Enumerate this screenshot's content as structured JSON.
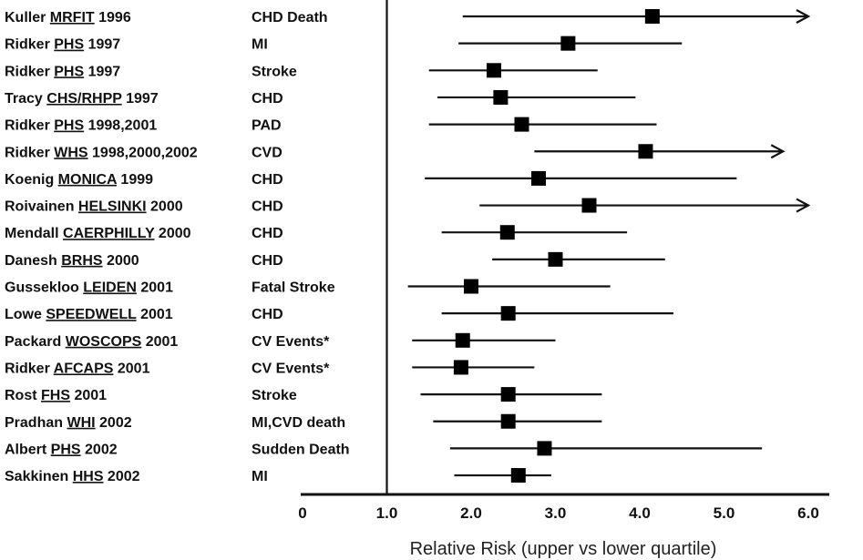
{
  "chart_data": {
    "type": "forest",
    "xlabel": "Relative Risk (upper vs lower quartile)",
    "xlim": [
      0,
      6.0
    ],
    "reference_line": 1.0,
    "ticks": [
      "0",
      "1.0",
      "2.0",
      "3.0",
      "4.0",
      "5.0",
      "6.0"
    ],
    "tick_values": [
      0,
      1,
      2,
      3,
      4,
      5,
      6
    ],
    "studies": [
      {
        "author": "Kuller",
        "study": "MRFIT",
        "year": "1996",
        "endpoint": "CHD Death",
        "rr": 4.15,
        "ci_low": 1.9,
        "ci_high": 6.0,
        "arrow": true
      },
      {
        "author": "Ridker",
        "study": "PHS",
        "year": "1997",
        "endpoint": "MI",
        "rr": 3.15,
        "ci_low": 1.85,
        "ci_high": 4.5,
        "arrow": false
      },
      {
        "author": "Ridker",
        "study": "PHS",
        "year": "1997",
        "endpoint": "Stroke",
        "rr": 2.27,
        "ci_low": 1.5,
        "ci_high": 3.5,
        "arrow": false
      },
      {
        "author": "Tracy",
        "study": "CHS/RHPP",
        "year": "1997",
        "endpoint": "CHD",
        "rr": 2.35,
        "ci_low": 1.6,
        "ci_high": 3.95,
        "arrow": false
      },
      {
        "author": "Ridker",
        "study": "PHS",
        "year": "1998,2001",
        "endpoint": "PAD",
        "rr": 2.6,
        "ci_low": 1.5,
        "ci_high": 4.2,
        "arrow": false
      },
      {
        "author": "Ridker",
        "study": "WHS",
        "year": "1998,2000,2002",
        "endpoint": "CVD",
        "rr": 4.07,
        "ci_low": 2.75,
        "ci_high": 5.7,
        "arrow": true
      },
      {
        "author": "Koenig",
        "study": "MONICA",
        "year": "1999",
        "endpoint": "CHD",
        "rr": 2.8,
        "ci_low": 1.45,
        "ci_high": 5.15,
        "arrow": false
      },
      {
        "author": "Roivainen",
        "study": "HELSINKI",
        "year": "2000",
        "endpoint": "CHD",
        "rr": 3.4,
        "ci_low": 2.1,
        "ci_high": 6.0,
        "arrow": true
      },
      {
        "author": "Mendall",
        "study": "CAERPHILLY",
        "year": "2000",
        "endpoint": "CHD",
        "rr": 2.43,
        "ci_low": 1.65,
        "ci_high": 3.85,
        "arrow": false
      },
      {
        "author": "Danesh",
        "study": "BRHS",
        "year": "2000",
        "endpoint": "CHD",
        "rr": 3.0,
        "ci_low": 2.25,
        "ci_high": 4.3,
        "arrow": false
      },
      {
        "author": "Gussekloo",
        "study": "LEIDEN",
        "year": "2001",
        "endpoint": "Fatal Stroke",
        "rr": 2.0,
        "ci_low": 1.25,
        "ci_high": 3.65,
        "arrow": false
      },
      {
        "author": "Lowe",
        "study": "SPEEDWELL",
        "year": "2001",
        "endpoint": "CHD",
        "rr": 2.44,
        "ci_low": 1.65,
        "ci_high": 4.4,
        "arrow": false
      },
      {
        "author": "Packard",
        "study": "WOSCOPS",
        "year": "2001",
        "endpoint": "CV Events*",
        "rr": 1.9,
        "ci_low": 1.3,
        "ci_high": 3.0,
        "arrow": false
      },
      {
        "author": "Ridker",
        "study": "AFCAPS",
        "year": "2001",
        "endpoint": "CV Events*",
        "rr": 1.88,
        "ci_low": 1.3,
        "ci_high": 2.75,
        "arrow": false
      },
      {
        "author": "Rost",
        "study": "FHS",
        "year": "2001",
        "endpoint": "Stroke",
        "rr": 2.44,
        "ci_low": 1.4,
        "ci_high": 3.55,
        "arrow": false
      },
      {
        "author": "Pradhan",
        "study": "WHI",
        "year": "2002",
        "endpoint": "MI,CVD death",
        "rr": 2.44,
        "ci_low": 1.55,
        "ci_high": 3.55,
        "arrow": false
      },
      {
        "author": "Albert",
        "study": "PHS",
        "year": "2002",
        "endpoint": "Sudden Death",
        "rr": 2.87,
        "ci_low": 1.75,
        "ci_high": 5.45,
        "arrow": false
      },
      {
        "author": "Sakkinen",
        "study": "HHS",
        "year": "2002",
        "endpoint": "MI",
        "rr": 2.56,
        "ci_low": 1.8,
        "ci_high": 2.95,
        "arrow": false
      }
    ]
  }
}
